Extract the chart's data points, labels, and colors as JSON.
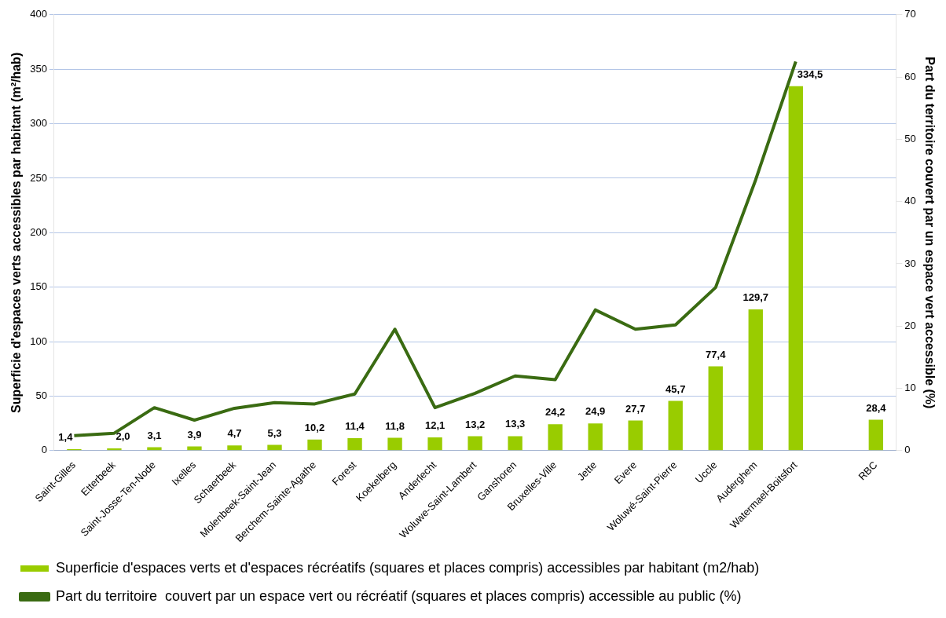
{
  "chart_data": {
    "type": "bar",
    "ylabel": "Superficie d'espaces verts accessibles par habitant (m²/hab)",
    "y2label": "Part du territoire couvert par un espace vert accessible (%)",
    "categories": [
      "Saint-Gilles",
      "Etterbeek",
      "Saint-Josse-Ten-Node",
      "Ixelles",
      "Schaerbeek",
      "Molenbeek-Saint-Jean",
      "Berchem-Sainte-Agathe",
      "Forest",
      "Koekelberg",
      "Anderlecht",
      "Woluwe-Saint-Lambert",
      "Ganshoren",
      "Bruxelles-Ville",
      "Jette",
      "Evere",
      "Woluwé-Saint-Pierre",
      "Uccle",
      "Auderghem",
      "Watermael-Boitsfort",
      null,
      "RBC"
    ],
    "series": [
      {
        "name": "Superficie d'espaces verts et d'espaces récréatifs (squares et places compris) accessibles par habitant (m2/hab)",
        "color": "#99cc00",
        "values": [
          1.4,
          2.0,
          3.1,
          3.9,
          4.7,
          5.3,
          10.2,
          11.4,
          11.8,
          12.1,
          13.2,
          13.3,
          24.2,
          24.9,
          27.7,
          45.7,
          77.4,
          129.7,
          334.5,
          null,
          28.4
        ],
        "value_labels": [
          "1,4",
          "2,0",
          "3,1",
          "3,9",
          "4,7",
          "5,3",
          "10,2",
          "11,4",
          "11,8",
          "12,1",
          "13,2",
          "13,3",
          "24,2",
          "24,9",
          "27,7",
          "45,7",
          "77,4",
          "129,7",
          "334,5",
          null,
          "28,4"
        ]
      },
      {
        "type": "line",
        "axis": "y2",
        "name": "Part du territoire  couvert par un espace vert ou récréatif (squares et places compris) accessible au public (%)",
        "color": "#3a6b12",
        "values": [
          2.4,
          2.8,
          6.9,
          4.9,
          6.8,
          7.7,
          7.5,
          9.1,
          19.5,
          6.9,
          9.2,
          12.0,
          11.4,
          22.6,
          19.5,
          20.2,
          26.2,
          43.5,
          62.5,
          null,
          null
        ]
      }
    ],
    "ylim": [
      0,
      400
    ],
    "yticks": [
      0,
      50,
      100,
      150,
      200,
      250,
      300,
      350,
      400
    ],
    "y2lim": [
      0,
      70
    ],
    "y2ticks": [
      0,
      10,
      20,
      30,
      40,
      50,
      60,
      70
    ],
    "grid": "y",
    "legend": "bottom",
    "marker": "none",
    "line_style": "solid"
  }
}
